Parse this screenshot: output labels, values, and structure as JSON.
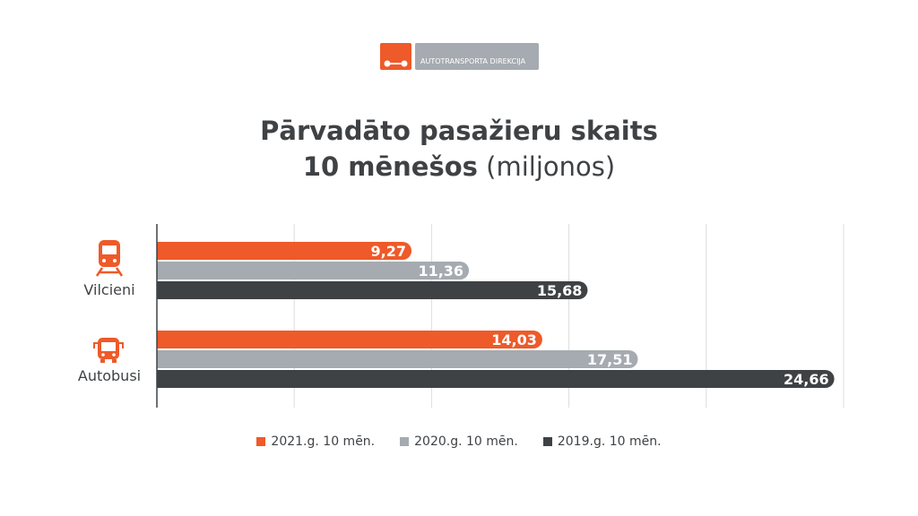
{
  "logo": {
    "text": "AUTOTRANSPORTA DIREKCIJA"
  },
  "title": {
    "line1": "Pārvadāto pasažieru skaits",
    "line2_bold": "10 mēnešos",
    "line2_light": "(miljonos)"
  },
  "chart_data": {
    "type": "bar",
    "orientation": "horizontal",
    "title": "Pārvadāto pasažieru skaits 10 mēnešos (miljonos)",
    "categories": [
      "Vilcieni",
      "Autobusi"
    ],
    "category_icons": [
      "train-icon",
      "bus-icon"
    ],
    "series": [
      {
        "name": "2021.g. 10 mēn.",
        "color": "#ee5a29",
        "values": [
          9.27,
          14.03
        ],
        "labels": [
          "9,27",
          "14,03"
        ]
      },
      {
        "name": "2020.g. 10 mēn.",
        "color": "#a5abb0",
        "values": [
          11.36,
          17.51
        ],
        "labels": [
          "11,36",
          "17,51"
        ]
      },
      {
        "name": "2019.g. 10 mēn.",
        "color": "#3f4245",
        "values": [
          15.68,
          24.66
        ],
        "labels": [
          "15,68",
          "24,66"
        ]
      }
    ],
    "xlim": [
      0,
      25
    ],
    "grid_step": 5,
    "grid": true,
    "legend": "bottom"
  }
}
